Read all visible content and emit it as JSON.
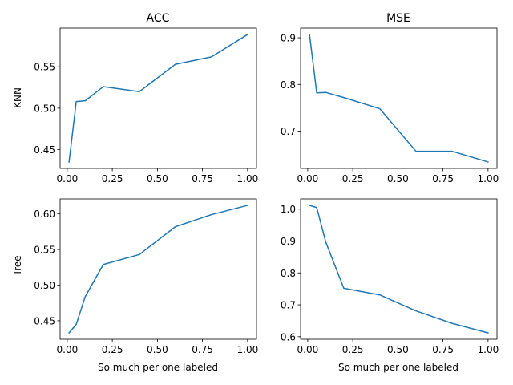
{
  "figure": {
    "col_titles": [
      "ACC",
      "MSE"
    ],
    "row_labels": [
      "KNN",
      "Tree"
    ],
    "xlabel": "So much per one labeled",
    "line_color": "#1f77b4"
  },
  "chart_data": [
    {
      "type": "line",
      "title": "ACC",
      "ylabel": "KNN",
      "xlabel": "",
      "x": [
        0.01,
        0.05,
        0.1,
        0.2,
        0.4,
        0.6,
        0.8,
        1.0
      ],
      "series": [
        {
          "values": [
            0.435,
            0.508,
            0.509,
            0.526,
            0.52,
            0.553,
            0.562,
            0.589
          ]
        }
      ],
      "xlim": [
        -0.0395,
        1.0495
      ],
      "ylim": [
        0.4273,
        0.5967
      ],
      "xticks": [
        0.0,
        0.25,
        0.5,
        0.75,
        1.0
      ],
      "xtick_labels": [
        "0.00",
        "0.25",
        "0.50",
        "0.75",
        "1.00"
      ],
      "yticks": [
        0.45,
        0.5,
        0.55
      ],
      "ytick_labels": [
        "0.45",
        "0.50",
        "0.55"
      ],
      "grid": false
    },
    {
      "type": "line",
      "title": "MSE",
      "ylabel": "",
      "xlabel": "",
      "x": [
        0.01,
        0.05,
        0.1,
        0.2,
        0.4,
        0.6,
        0.8,
        1.0
      ],
      "series": [
        {
          "values": [
            0.907,
            0.782,
            0.783,
            0.772,
            0.748,
            0.657,
            0.657,
            0.634
          ]
        }
      ],
      "xlim": [
        -0.0395,
        1.0495
      ],
      "ylim": [
        0.6202,
        0.9207
      ],
      "xticks": [
        0.0,
        0.25,
        0.5,
        0.75,
        1.0
      ],
      "xtick_labels": [
        "0.00",
        "0.25",
        "0.50",
        "0.75",
        "1.00"
      ],
      "yticks": [
        0.7,
        0.8,
        0.9
      ],
      "ytick_labels": [
        "0.7",
        "0.8",
        "0.9"
      ],
      "grid": false
    },
    {
      "type": "line",
      "title": "",
      "ylabel": "Tree",
      "xlabel": "So much per one labeled",
      "x": [
        0.01,
        0.05,
        0.1,
        0.2,
        0.4,
        0.6,
        0.8,
        1.0
      ],
      "series": [
        {
          "values": [
            0.433,
            0.445,
            0.484,
            0.529,
            0.543,
            0.582,
            0.599,
            0.612
          ]
        }
      ],
      "xlim": [
        -0.0395,
        1.0495
      ],
      "ylim": [
        0.424,
        0.621
      ],
      "xticks": [
        0.0,
        0.25,
        0.5,
        0.75,
        1.0
      ],
      "xtick_labels": [
        "0.00",
        "0.25",
        "0.50",
        "0.75",
        "1.00"
      ],
      "yticks": [
        0.45,
        0.5,
        0.55,
        0.6
      ],
      "ytick_labels": [
        "0.45",
        "0.50",
        "0.55",
        "0.60"
      ],
      "grid": false
    },
    {
      "type": "line",
      "title": "",
      "ylabel": "",
      "xlabel": "So much per one labeled",
      "x": [
        0.01,
        0.05,
        0.1,
        0.2,
        0.4,
        0.6,
        0.8,
        1.0
      ],
      "series": [
        {
          "values": [
            1.012,
            1.005,
            0.897,
            0.752,
            0.731,
            0.681,
            0.642,
            0.612
          ]
        }
      ],
      "xlim": [
        -0.0395,
        1.0495
      ],
      "ylim": [
        0.592,
        1.032
      ],
      "xticks": [
        0.0,
        0.25,
        0.5,
        0.75,
        1.0
      ],
      "xtick_labels": [
        "0.00",
        "0.25",
        "0.50",
        "0.75",
        "1.00"
      ],
      "yticks": [
        0.6,
        0.7,
        0.8,
        0.9,
        1.0
      ],
      "ytick_labels": [
        "0.6",
        "0.7",
        "0.8",
        "0.9",
        "1.0"
      ],
      "grid": false
    }
  ]
}
